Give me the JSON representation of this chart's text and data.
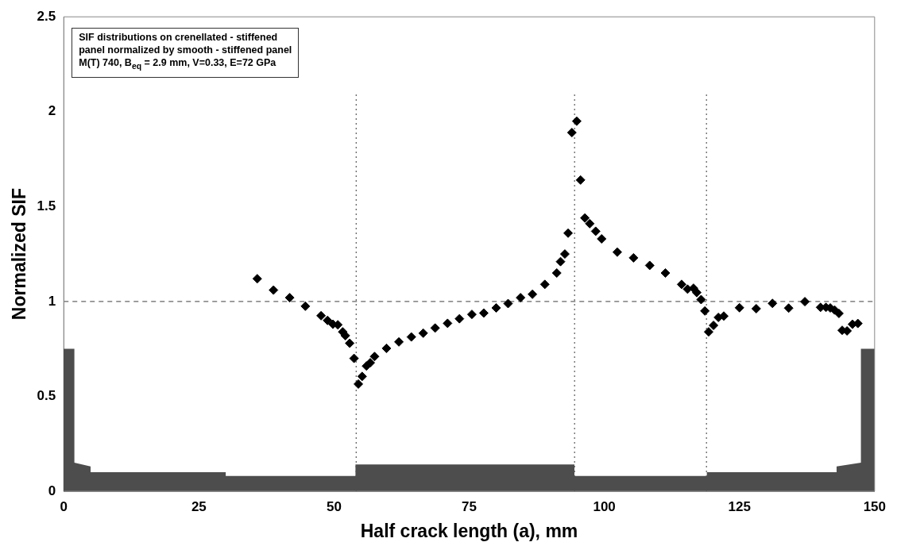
{
  "chart_data": {
    "type": "scatter",
    "xlabel": "Half crack length (a), mm",
    "ylabel": "Normalized SIF",
    "x": [
      35.8,
      38.8,
      41.8,
      44.7,
      47.6,
      48.8,
      49.8,
      50.7,
      51.6,
      52.1,
      52.9,
      53.7,
      54.5,
      55.2,
      56.0,
      56.7,
      57.5,
      59.7,
      62.0,
      64.3,
      66.5,
      68.7,
      71.0,
      73.2,
      75.5,
      77.7,
      80.0,
      82.2,
      84.5,
      86.7,
      89.0,
      91.2,
      91.9,
      92.7,
      93.3,
      94.0,
      94.9,
      95.6,
      96.4,
      97.3,
      98.4,
      99.5,
      102.4,
      105.4,
      108.4,
      111.3,
      114.3,
      115.4,
      116.5,
      117.1,
      117.9,
      118.6,
      119.3,
      120.2,
      121.1,
      122.1,
      125.0,
      128.1,
      131.1,
      134.1,
      137.1,
      140.0,
      141.0,
      141.8,
      142.6,
      143.4,
      144.0,
      144.9,
      145.9,
      146.9
    ],
    "values": [
      1.12,
      1.06,
      1.02,
      0.975,
      0.925,
      0.9,
      0.88,
      0.877,
      0.84,
      0.82,
      0.78,
      0.7,
      0.565,
      0.605,
      0.66,
      0.677,
      0.71,
      0.753,
      0.787,
      0.813,
      0.833,
      0.86,
      0.885,
      0.909,
      0.932,
      0.939,
      0.966,
      0.989,
      1.02,
      1.038,
      1.09,
      1.15,
      1.21,
      1.25,
      1.36,
      1.89,
      1.95,
      1.64,
      1.44,
      1.41,
      1.37,
      1.33,
      1.26,
      1.23,
      1.19,
      1.15,
      1.09,
      1.065,
      1.07,
      1.047,
      1.01,
      0.95,
      0.84,
      0.874,
      0.916,
      0.923,
      0.967,
      0.962,
      0.99,
      0.965,
      0.999,
      0.969,
      0.969,
      0.966,
      0.955,
      0.937,
      0.848,
      0.845,
      0.88,
      0.884
    ],
    "color": "#000000",
    "marker": "diamond",
    "grid": false,
    "legend": false,
    "xlim": [
      0,
      150
    ],
    "xticks": [
      0,
      25,
      50,
      75,
      100,
      125,
      150
    ],
    "ylim": [
      0,
      2.5
    ],
    "yticks": [
      0,
      0.5,
      1,
      1.5,
      2,
      2.5
    ],
    "ref_lines": [
      {
        "axis": "y",
        "value": 1,
        "color": "#666666",
        "line_style": "dashed"
      },
      {
        "axis": "x",
        "value": 54.1,
        "color": "#666666",
        "line_style": "dotted"
      },
      {
        "axis": "x",
        "value": 94.5,
        "color": "#666666",
        "line_style": "dotted"
      },
      {
        "axis": "x",
        "value": 118.9,
        "color": "#666666",
        "line_style": "dotted"
      }
    ],
    "annotations": [
      "SIF distributions on crenellated - stiffened",
      "panel normalized by smooth - stiffened panel",
      "M(T) 740, B$_{eq}$ = 2.9 mm, V=0.33, E=72 GPa"
    ]
  }
}
